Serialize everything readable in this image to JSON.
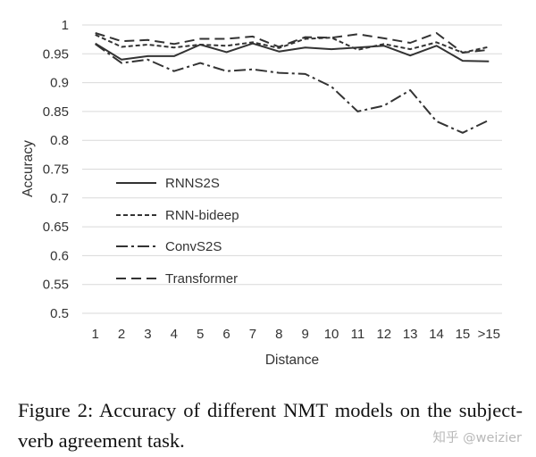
{
  "chart_data": {
    "type": "line",
    "title": "",
    "xlabel": "Distance",
    "ylabel": "Accuracy",
    "categories": [
      "1",
      "2",
      "3",
      "4",
      "5",
      "6",
      "7",
      "8",
      "9",
      "10",
      "11",
      "12",
      "13",
      "14",
      "15",
      ">15"
    ],
    "ylim": [
      0.5,
      1.0
    ],
    "yticks": [
      "0.5",
      "0.55",
      "0.6",
      "0.65",
      "0.7",
      "0.75",
      "0.8",
      "0.85",
      "0.9",
      "0.95",
      "1"
    ],
    "grid": "horizontal",
    "legend_position": "center-left",
    "series": [
      {
        "name": "RNNS2S",
        "style": "solid",
        "color": "#333333",
        "values": [
          0.968,
          0.94,
          0.946,
          0.946,
          0.966,
          0.953,
          0.968,
          0.954,
          0.961,
          0.958,
          0.961,
          0.964,
          0.947,
          0.964,
          0.938,
          0.937
        ]
      },
      {
        "name": "RNN-bideep",
        "style": "short-dash",
        "color": "#333333",
        "values": [
          0.983,
          0.962,
          0.966,
          0.961,
          0.966,
          0.964,
          0.97,
          0.96,
          0.976,
          0.978,
          0.957,
          0.967,
          0.958,
          0.97,
          0.952,
          0.962
        ]
      },
      {
        "name": "ConvS2S",
        "style": "dash-dot",
        "color": "#333333",
        "values": [
          0.967,
          0.934,
          0.94,
          0.92,
          0.934,
          0.92,
          0.923,
          0.917,
          0.915,
          0.893,
          0.85,
          0.86,
          0.887,
          0.833,
          0.813,
          0.835
        ]
      },
      {
        "name": "Transformer",
        "style": "long-dash",
        "color": "#333333",
        "values": [
          0.986,
          0.972,
          0.974,
          0.967,
          0.976,
          0.976,
          0.98,
          0.962,
          0.979,
          0.978,
          0.984,
          0.977,
          0.969,
          0.986,
          0.952,
          0.957
        ]
      }
    ]
  },
  "caption": "Figure 2:  Accuracy of different NMT models on the subject-verb agreement task.",
  "watermark": "知乎 @weizier"
}
